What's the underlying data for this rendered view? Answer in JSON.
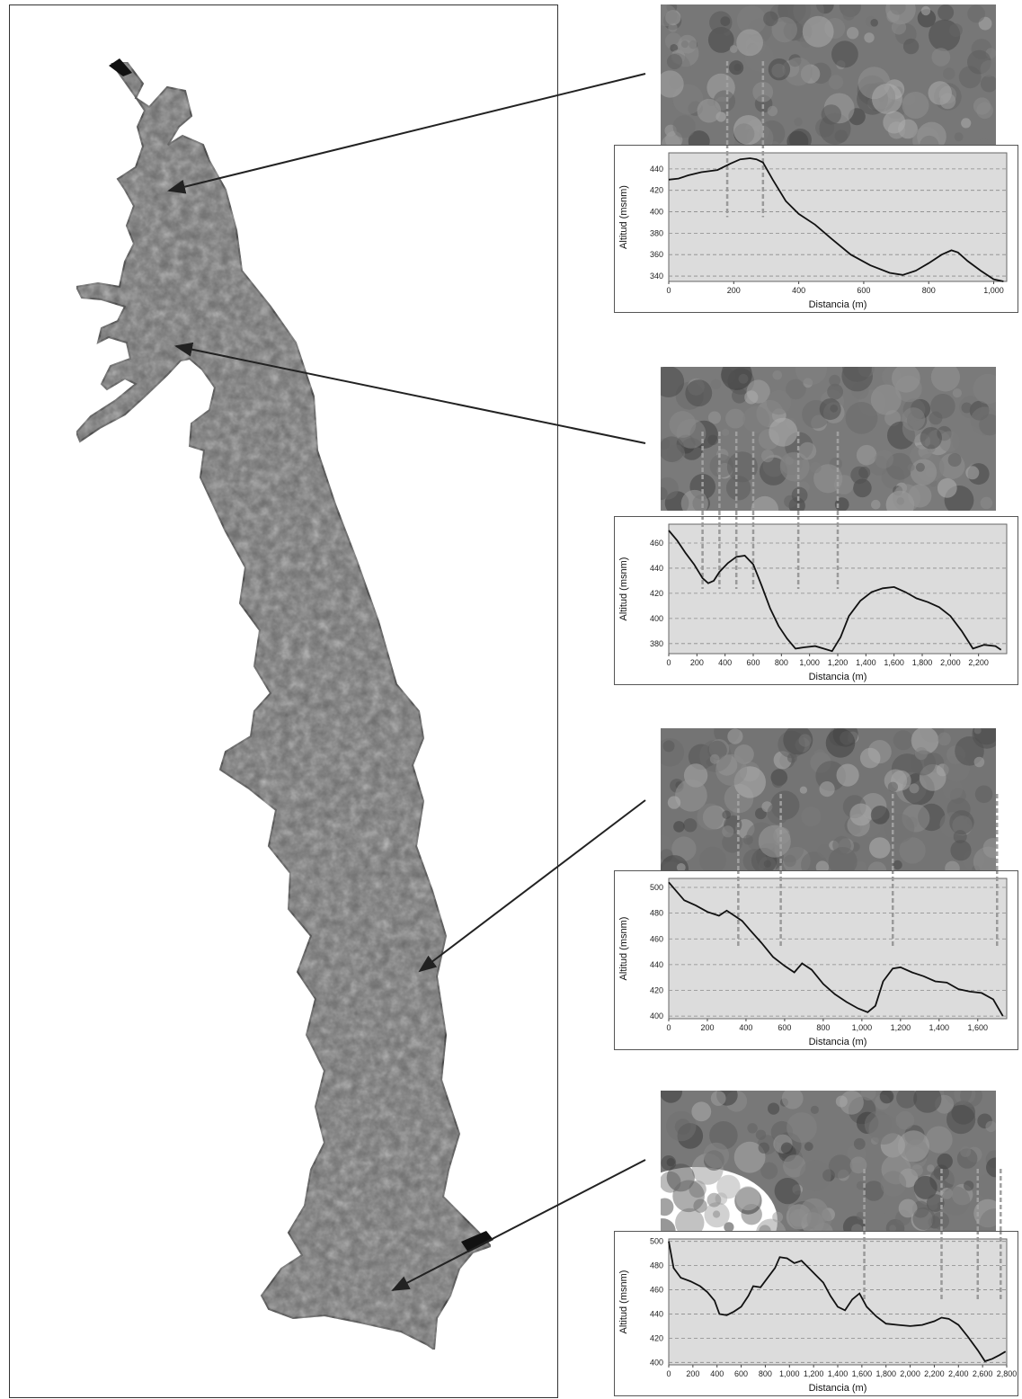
{
  "colors": {
    "plot_bg": "#dcdcdc",
    "grid": "#8a8a8a",
    "line": "#111111",
    "map_fill": "#6e6e6e",
    "arrow": "#222222"
  },
  "chart_data": [
    {
      "type": "line",
      "xlabel": "Distancia (m)",
      "ylabel": "Altitud (msnm)",
      "xlim": [
        0,
        1040
      ],
      "ylim": [
        335,
        455
      ],
      "xticks": [
        0,
        200,
        400,
        600,
        800,
        1000
      ],
      "xtick_labels": [
        "0",
        "200",
        "400",
        "600",
        "800",
        "1,000"
      ],
      "yticks": [
        340,
        360,
        380,
        400,
        420,
        440
      ],
      "x": [
        0,
        30,
        60,
        100,
        150,
        190,
        220,
        250,
        270,
        290,
        320,
        360,
        400,
        450,
        500,
        560,
        620,
        680,
        720,
        760,
        800,
        840,
        870,
        890,
        920,
        960,
        1000,
        1030
      ],
      "y": [
        430,
        431,
        434,
        437,
        439,
        445,
        449,
        450,
        449,
        446,
        430,
        410,
        398,
        388,
        375,
        360,
        350,
        343,
        341,
        345,
        352,
        360,
        364,
        362,
        354,
        345,
        337,
        335
      ],
      "markers_x": [
        180,
        290
      ]
    },
    {
      "type": "line",
      "xlabel": "Distancia (m)",
      "ylabel": "Altitud (msnm)",
      "xlim": [
        0,
        2400
      ],
      "ylim": [
        372,
        475
      ],
      "xticks": [
        0,
        200,
        400,
        600,
        800,
        1000,
        1200,
        1400,
        1600,
        1800,
        2000,
        2200
      ],
      "xtick_labels": [
        "0",
        "200",
        "400",
        "600",
        "800",
        "1,000",
        "1,200",
        "1,400",
        "1,600",
        "1,800",
        "2,000",
        "2,200"
      ],
      "yticks": [
        380,
        400,
        420,
        440,
        460
      ],
      "x": [
        0,
        60,
        120,
        180,
        240,
        280,
        320,
        360,
        420,
        480,
        540,
        600,
        660,
        720,
        780,
        840,
        900,
        960,
        1040,
        1100,
        1160,
        1220,
        1280,
        1360,
        1440,
        1520,
        1600,
        1680,
        1760,
        1840,
        1920,
        2000,
        2080,
        2160,
        2240,
        2320,
        2360
      ],
      "y": [
        470,
        462,
        452,
        443,
        432,
        428,
        430,
        437,
        444,
        449,
        450,
        443,
        426,
        408,
        394,
        384,
        376,
        377,
        378,
        376,
        374,
        385,
        402,
        414,
        421,
        424,
        425,
        421,
        416,
        413,
        409,
        402,
        390,
        376,
        379,
        378,
        375
      ],
      "markers_x": [
        240,
        360,
        480,
        600,
        920,
        1200
      ]
    },
    {
      "type": "line",
      "xlabel": "Distancia (m)",
      "ylabel": "Altitud (msnm)",
      "xlim": [
        0,
        1750
      ],
      "ylim": [
        398,
        507
      ],
      "xticks": [
        0,
        200,
        400,
        600,
        800,
        1000,
        1200,
        1400,
        1600
      ],
      "xtick_labels": [
        "0",
        "200",
        "400",
        "600",
        "800",
        "1,000",
        "1,200",
        "1,400",
        "1,600"
      ],
      "yticks": [
        400,
        420,
        440,
        460,
        480,
        500
      ],
      "x": [
        0,
        40,
        80,
        140,
        200,
        260,
        300,
        340,
        380,
        420,
        480,
        540,
        600,
        650,
        690,
        740,
        800,
        860,
        920,
        980,
        1030,
        1070,
        1110,
        1160,
        1200,
        1260,
        1320,
        1380,
        1440,
        1500,
        1560,
        1620,
        1680,
        1730
      ],
      "y": [
        504,
        497,
        490,
        486,
        481,
        478,
        482,
        478,
        474,
        467,
        457,
        446,
        439,
        434,
        441,
        436,
        425,
        417,
        411,
        406,
        403,
        408,
        427,
        437,
        438,
        434,
        431,
        427,
        426,
        421,
        419,
        418,
        413,
        400
      ],
      "markers_x": [
        360,
        580,
        1160,
        1700
      ]
    },
    {
      "type": "line",
      "xlabel": "Distancia (m)",
      "ylabel": "Altitud (msnm)",
      "xlim": [
        0,
        2800
      ],
      "ylim": [
        398,
        502
      ],
      "xticks": [
        0,
        200,
        400,
        600,
        800,
        1000,
        1200,
        1400,
        1600,
        1800,
        2000,
        2200,
        2400,
        2600,
        2800
      ],
      "xtick_labels": [
        "0",
        "200",
        "400",
        "600",
        "800",
        "1,000",
        "1,200",
        "1,400",
        "1,600",
        "1,800",
        "2,000",
        "2,200",
        "2,400",
        "2,600",
        "2,800"
      ],
      "yticks": [
        400,
        420,
        440,
        460,
        480,
        500
      ],
      "x": [
        0,
        40,
        100,
        180,
        260,
        320,
        380,
        420,
        480,
        540,
        600,
        660,
        700,
        760,
        820,
        880,
        920,
        980,
        1040,
        1100,
        1160,
        1220,
        1280,
        1340,
        1400,
        1460,
        1520,
        1580,
        1640,
        1720,
        1800,
        1900,
        2000,
        2100,
        2200,
        2260,
        2320,
        2400,
        2480,
        2560,
        2620,
        2680,
        2740,
        2790
      ],
      "y": [
        500,
        478,
        470,
        467,
        463,
        458,
        451,
        440,
        439,
        442,
        446,
        455,
        463,
        462,
        470,
        478,
        487,
        486,
        482,
        484,
        478,
        472,
        466,
        455,
        446,
        443,
        452,
        457,
        446,
        438,
        432,
        431,
        430,
        431,
        434,
        437,
        436,
        431,
        421,
        410,
        401,
        403,
        406,
        409
      ],
      "markers_x": [
        1620,
        2260,
        2560,
        2750
      ]
    }
  ]
}
